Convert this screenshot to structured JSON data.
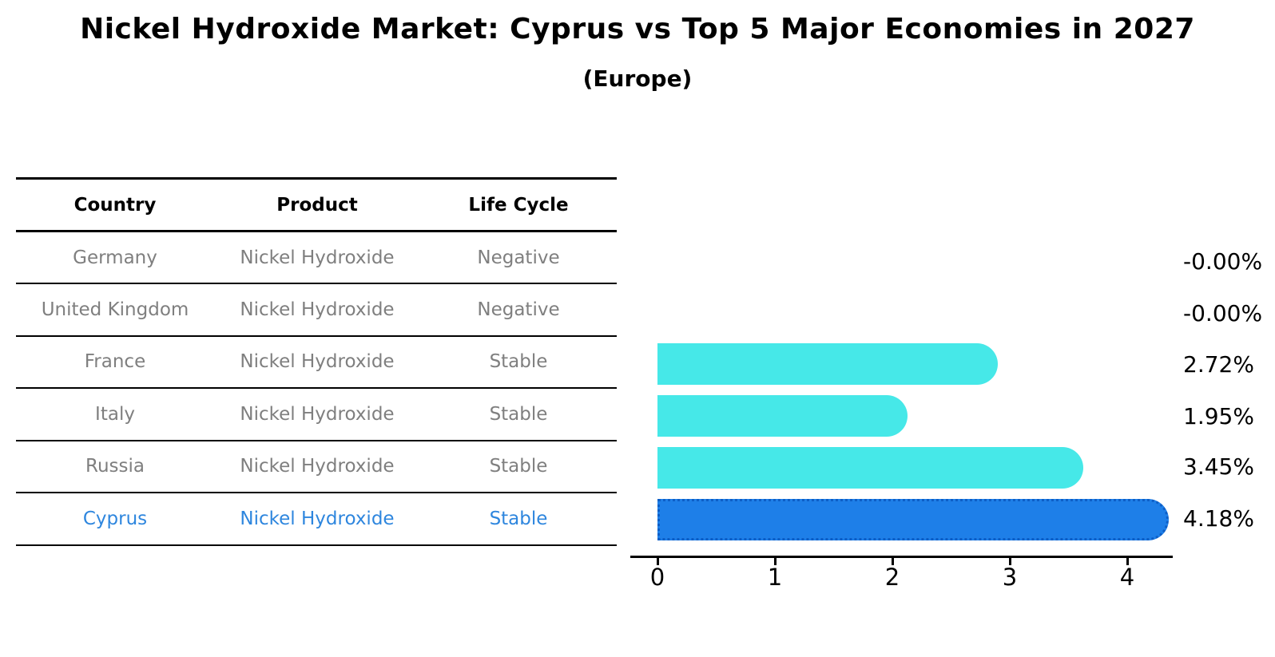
{
  "title": "Nickel Hydroxide Market: Cyprus vs Top 5 Major Economies in 2027",
  "subtitle": "(Europe)",
  "table": {
    "headers": [
      "Country",
      "Product",
      "Life Cycle"
    ],
    "rows": [
      {
        "country": "Germany",
        "product": "Nickel Hydroxide",
        "life_cycle": "Negative",
        "highlight": false
      },
      {
        "country": "United Kingdom",
        "product": "Nickel Hydroxide",
        "life_cycle": "Negative",
        "highlight": false
      },
      {
        "country": "France",
        "product": "Nickel Hydroxide",
        "life_cycle": "Stable",
        "highlight": false
      },
      {
        "country": "Italy",
        "product": "Nickel Hydroxide",
        "life_cycle": "Stable",
        "highlight": false
      },
      {
        "country": "Russia",
        "product": "Nickel Hydroxide",
        "life_cycle": "Stable",
        "highlight": false
      },
      {
        "country": "Cyprus",
        "product": "Nickel Hydroxide",
        "life_cycle": "Stable",
        "highlight": true
      }
    ]
  },
  "chart_data": {
    "type": "bar",
    "orientation": "horizontal",
    "title": "Nickel Hydroxide Market: Cyprus vs Top 5 Major Economies in 2027",
    "subtitle": "(Europe)",
    "categories": [
      "Germany",
      "United Kingdom",
      "France",
      "Italy",
      "Russia",
      "Cyprus"
    ],
    "values": [
      -0.0,
      -0.0,
      2.72,
      1.95,
      3.45,
      4.18
    ],
    "value_labels": [
      "-0.00%",
      "-0.00%",
      "2.72%",
      "1.95%",
      "3.45%",
      "4.18%"
    ],
    "xticks": [
      0,
      1,
      2,
      3,
      4
    ],
    "xtick_labels": [
      "0",
      "1",
      "2",
      "3",
      "4"
    ],
    "xlim": [
      -0.22,
      4.38
    ],
    "grid": false,
    "legend": "none",
    "bar_color": "#46E8E8",
    "highlight_color": "#1E7FE8",
    "highlight_border_color": "#0d5ec6",
    "highlight_index": 5,
    "row_text_color": "#7f7f7f",
    "highlight_text_color": "#2E86DE"
  }
}
